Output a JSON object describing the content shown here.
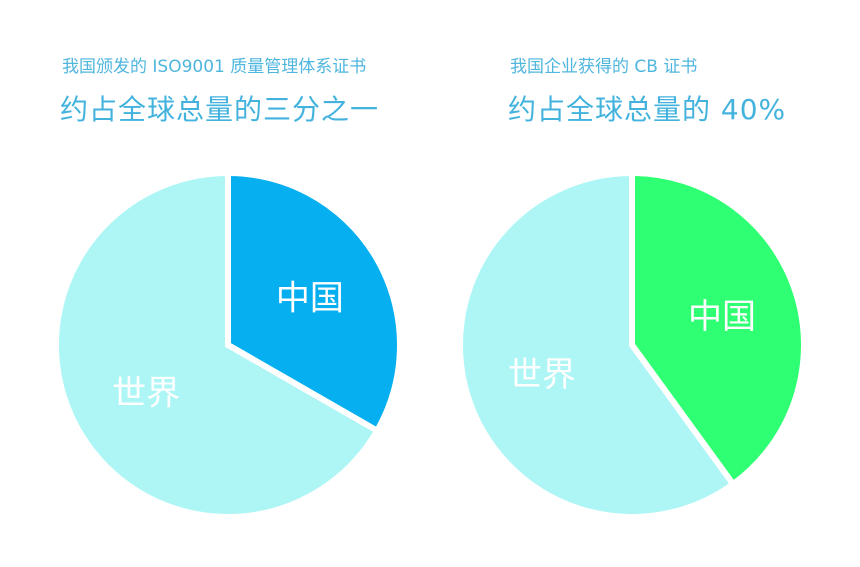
{
  "chart_data": [
    {
      "type": "pie",
      "subtitle": "我国颁发的 ISO9001 质量管理体系证书",
      "title": "约占全球总量的三分之一",
      "slices": [
        {
          "label": "中国",
          "value": 33.3,
          "color": "#05aff0"
        },
        {
          "label": "世界",
          "value": 66.7,
          "color": "#aef6f6"
        }
      ]
    },
    {
      "type": "pie",
      "subtitle": "我国企业获得的 CB 证书",
      "title": "约占全球总量的 40%",
      "slices": [
        {
          "label": "中国",
          "value": 40,
          "color": "#2fff72"
        },
        {
          "label": "世界",
          "value": 60,
          "color": "#aef6f6"
        }
      ]
    }
  ]
}
